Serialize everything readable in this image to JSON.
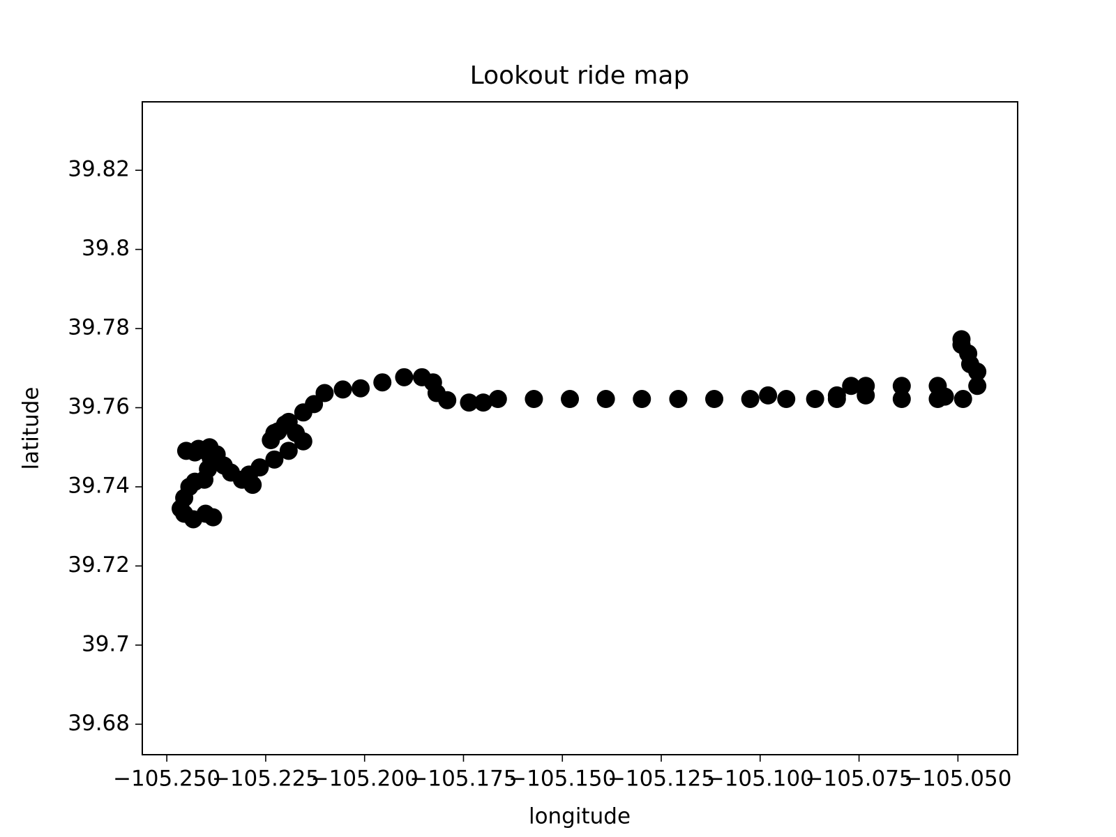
{
  "chart_data": {
    "type": "scatter",
    "title": "Lookout ride map",
    "x_label": "longitude",
    "y_label": "latitude",
    "color": "#000000",
    "xlim": [
      -105.2562,
      -105.0349
    ],
    "ylim": [
      39.6723,
      39.8373
    ],
    "xticks": [
      {
        "value": -105.25,
        "label": "−105.250"
      },
      {
        "value": -105.225,
        "label": "−105.225"
      },
      {
        "value": -105.2,
        "label": "−105.200"
      },
      {
        "value": -105.175,
        "label": "−105.175"
      },
      {
        "value": -105.15,
        "label": "−105.150"
      },
      {
        "value": -105.125,
        "label": "−105.125"
      },
      {
        "value": -105.1,
        "label": "−105.100"
      },
      {
        "value": -105.075,
        "label": "−105.075"
      },
      {
        "value": -105.05,
        "label": "−105.050"
      }
    ],
    "yticks": [
      39.68,
      39.7,
      39.72,
      39.74,
      39.76,
      39.78,
      39.8,
      39.82
    ],
    "x": [
      -105.2383,
      -105.2402,
      -105.2433,
      -105.2456,
      -105.2465,
      -105.2456,
      -105.2443,
      -105.2429,
      -105.2405,
      -105.2396,
      -105.2389,
      -105.2402,
      -105.2429,
      -105.2451,
      -105.242,
      -105.2392,
      -105.2374,
      -105.2356,
      -105.2338,
      -105.231,
      -105.2283,
      -105.2292,
      -105.2265,
      -105.2228,
      -105.2192,
      -105.2155,
      -105.2174,
      -105.2201,
      -105.2228,
      -105.2237,
      -105.2219,
      -105.2192,
      -105.2155,
      -105.2128,
      -105.2101,
      -105.2055,
      -105.201,
      -105.1955,
      -105.19,
      -105.1855,
      -105.1827,
      -105.1818,
      -105.1791,
      -105.1736,
      -105.17,
      -105.1663,
      -105.1572,
      -105.1481,
      -105.139,
      -105.1299,
      -105.1207,
      -105.1116,
      -105.1025,
      -105.098,
      -105.0934,
      -105.0861,
      -105.0806,
      -105.077,
      -105.0733,
      -105.0642,
      -105.0551,
      -105.0533,
      -105.0487,
      -105.0451,
      -105.0451,
      -105.0469,
      -105.0474,
      -105.0491,
      -105.0491,
      -105.0551,
      -105.0642,
      -105.0733,
      -105.0806
    ],
    "y": [
      39.7323,
      39.7332,
      39.7318,
      39.7332,
      39.7345,
      39.7372,
      39.74,
      39.7413,
      39.7418,
      39.7445,
      39.7473,
      39.7491,
      39.7487,
      39.7491,
      39.7496,
      39.75,
      39.7482,
      39.7454,
      39.7436,
      39.7418,
      39.7405,
      39.7431,
      39.7449,
      39.7469,
      39.7491,
      39.7515,
      39.7536,
      39.7558,
      39.7536,
      39.7518,
      39.754,
      39.7564,
      39.7588,
      39.7609,
      39.7637,
      39.7646,
      39.7649,
      39.7664,
      39.7677,
      39.7677,
      39.7664,
      39.7637,
      39.7619,
      39.7613,
      39.7613,
      39.7622,
      39.7622,
      39.7622,
      39.7622,
      39.7622,
      39.7622,
      39.7622,
      39.7622,
      39.7631,
      39.7622,
      39.7622,
      39.7631,
      39.7655,
      39.7655,
      39.7655,
      39.7655,
      39.7628,
      39.7622,
      39.7655,
      39.7691,
      39.771,
      39.7737,
      39.7773,
      39.7759,
      39.7622,
      39.7622,
      39.7631,
      39.7622
    ]
  }
}
